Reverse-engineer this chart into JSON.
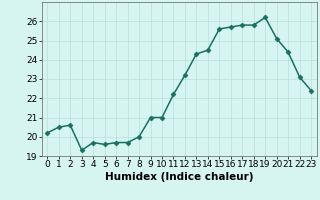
{
  "x": [
    0,
    1,
    2,
    3,
    4,
    5,
    6,
    7,
    8,
    9,
    10,
    11,
    12,
    13,
    14,
    15,
    16,
    17,
    18,
    19,
    20,
    21,
    22,
    23
  ],
  "y": [
    20.2,
    20.5,
    20.6,
    19.3,
    19.7,
    19.6,
    19.7,
    19.7,
    20.0,
    21.0,
    21.0,
    22.2,
    23.2,
    24.3,
    24.5,
    25.6,
    25.7,
    25.8,
    25.8,
    26.2,
    25.1,
    24.4,
    23.1,
    22.4
  ],
  "line_color": "#1a7060",
  "marker": "D",
  "marker_size": 2.5,
  "bg_color": "#d6f5f0",
  "grid_color": "#b8e0da",
  "xlabel": "Humidex (Indice chaleur)",
  "ylim": [
    19,
    27
  ],
  "xlim": [
    -0.5,
    23.5
  ],
  "yticks": [
    19,
    20,
    21,
    22,
    23,
    24,
    25,
    26
  ],
  "xticks": [
    0,
    1,
    2,
    3,
    4,
    5,
    6,
    7,
    8,
    9,
    10,
    11,
    12,
    13,
    14,
    15,
    16,
    17,
    18,
    19,
    20,
    21,
    22,
    23
  ],
  "tick_fontsize": 6.5,
  "xlabel_fontsize": 7.5,
  "line_width": 1.1
}
